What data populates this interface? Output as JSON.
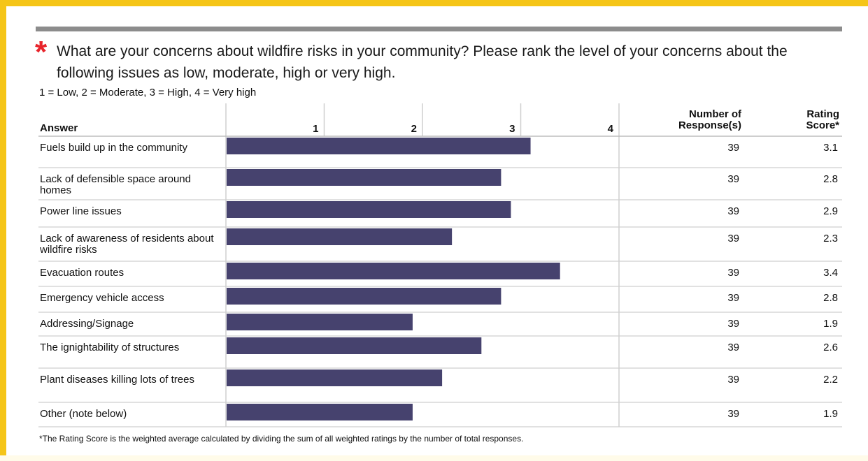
{
  "question": {
    "asterisk": "*",
    "text": "What are your concerns about wildfire risks in your community? Please  rank the level of your concerns about the following issues as low, moderate, high or very high.",
    "scale_note": "1 = Low, 2 = Moderate, 3 = High, 4 = Very high"
  },
  "table": {
    "answer_header": "Answer",
    "responses_header_line1": "Number of",
    "responses_header_line2": "Response(s)",
    "score_header_line1": "Rating",
    "score_header_line2": "Score*"
  },
  "footnote": "*The Rating Score is the weighted average calculated by dividing the sum of all weighted ratings by the number of total responses.",
  "colors": {
    "bar": "#46426e",
    "grid": "#cfcfcf",
    "frame": "#f5c518",
    "asterisk": "#e8242b"
  },
  "chart_data": {
    "type": "bar",
    "orientation": "horizontal",
    "x_ticks": [
      "1",
      "2",
      "3",
      "4"
    ],
    "xlim": [
      0,
      4
    ],
    "grid": true,
    "categories": [
      "Fuels build up in the community",
      "Lack of defensible space around homes",
      "Power line issues",
      "Lack of awareness of residents about wildfire risks",
      "Evacuation routes",
      "Emergency vehicle access",
      "Addressing/Signage",
      "The ignightability of structures",
      "Plant diseases killing lots of trees",
      "Other (note below)"
    ],
    "values": [
      3.1,
      2.8,
      2.9,
      2.3,
      3.4,
      2.8,
      1.9,
      2.6,
      2.2,
      1.9
    ],
    "responses": [
      39,
      39,
      39,
      39,
      39,
      39,
      39,
      39,
      39,
      39
    ],
    "score_labels": [
      "3.1",
      "2.8",
      "2.9",
      "2.3",
      "3.4",
      "2.8",
      "1.9",
      "2.6",
      "2.2",
      "1.9"
    ]
  }
}
